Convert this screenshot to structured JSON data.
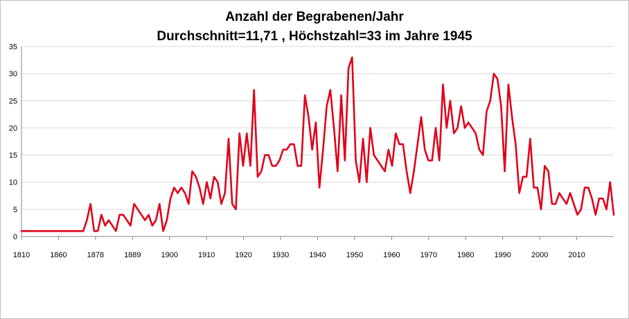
{
  "chart_data": {
    "type": "line",
    "title": "Anzahl der Begrabenen/Jahr",
    "subtitle": "Durchschnitt=11,71  , Höchstzahl=33 im Jahre 1945",
    "xlabel": "",
    "ylabel": "",
    "ylim": [
      0,
      35
    ],
    "yticks": [
      0,
      5,
      10,
      15,
      20,
      25,
      30,
      35
    ],
    "grid": true,
    "legend": "none",
    "line_color": "#e0001a",
    "x_tick_labels": [
      "1810",
      "1860",
      "1878",
      "1889",
      "1900",
      "1910",
      "1920",
      "1930",
      "1940",
      "1950",
      "1960",
      "1970",
      "1980",
      "1990",
      "2000",
      "2010"
    ],
    "series": [
      {
        "values": [
          1,
          1,
          1,
          1,
          1,
          1,
          1,
          1,
          1,
          1,
          1,
          1,
          1,
          1,
          1,
          1,
          1,
          1,
          3,
          6,
          1,
          1,
          4,
          2,
          3,
          2,
          1,
          4,
          4,
          3,
          2,
          6,
          5,
          4,
          3,
          4,
          2,
          3,
          6,
          1,
          3,
          7,
          9,
          8,
          9,
          8,
          6,
          12,
          11,
          9,
          6,
          10,
          7,
          11,
          10,
          6,
          8,
          18,
          6,
          5,
          19,
          13,
          19,
          13,
          27,
          11,
          12,
          15,
          15,
          13,
          13,
          14,
          16,
          16,
          17,
          17,
          13,
          13,
          26,
          22,
          16,
          21,
          9,
          16,
          24,
          27,
          20,
          12,
          26,
          14,
          31,
          33,
          14,
          10,
          18,
          10,
          20,
          15,
          14,
          13,
          12,
          16,
          13,
          19,
          17,
          17,
          12,
          8,
          12,
          17,
          22,
          16,
          14,
          14,
          20,
          14,
          28,
          20,
          25,
          19,
          20,
          24,
          20,
          21,
          20,
          19,
          16,
          15,
          23,
          25,
          30,
          29,
          24,
          12,
          28,
          22,
          17,
          8,
          11,
          11,
          18,
          9,
          9,
          5,
          13,
          12,
          6,
          6,
          8,
          7,
          6,
          8,
          6,
          4,
          5,
          9,
          9,
          7,
          4,
          7,
          7,
          5,
          10,
          4
        ]
      }
    ]
  }
}
